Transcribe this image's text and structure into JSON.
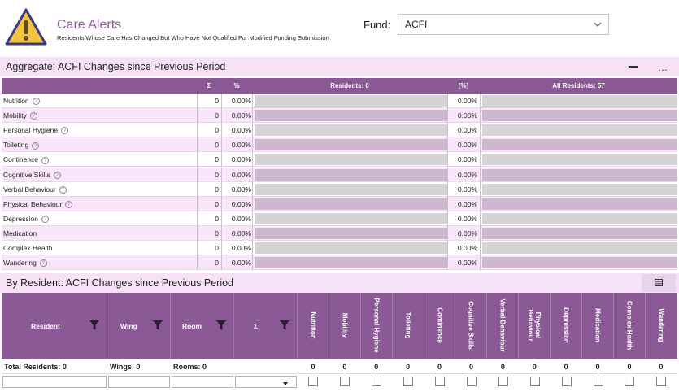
{
  "header": {
    "title": "Care Alerts",
    "subtitle": "Residents Whose Care Has Changed But Who Have Not Qualified For Modified Funding Submission",
    "fund_label": "Fund:",
    "fund_value": "ACFI"
  },
  "aggregate": {
    "title": "Aggregate: ACFI Changes since Previous Period",
    "more_label": "…",
    "columns": {
      "sigma": "Σ",
      "percent": "%",
      "residents": "Residents: 0",
      "pct_bracket": "[%]",
      "all_residents": "All Residents: 57"
    },
    "rows": [
      {
        "label": "Nutrition",
        "help": true,
        "count": "0",
        "pct": "0.00%",
        "pct2": "0.00%"
      },
      {
        "label": "Mobility",
        "help": true,
        "count": "0",
        "pct": "0.00%",
        "pct2": "0.00%"
      },
      {
        "label": "Personal Hygiene",
        "help": true,
        "count": "0",
        "pct": "0.00%",
        "pct2": "0.00%"
      },
      {
        "label": "Toileting",
        "help": true,
        "count": "0",
        "pct": "0.00%",
        "pct2": "0.00%"
      },
      {
        "label": "Continence",
        "help": true,
        "count": "0",
        "pct": "0.00%",
        "pct2": "0.00%"
      },
      {
        "label": "Cognitive Skills",
        "help": true,
        "count": "0",
        "pct": "0.00%",
        "pct2": "0.00%"
      },
      {
        "label": "Verbal Behaviour",
        "help": true,
        "count": "0",
        "pct": "0.00%",
        "pct2": "0.00%"
      },
      {
        "label": "Physical Behaviour",
        "help": true,
        "count": "0",
        "pct": "0.00%",
        "pct2": "0.00%"
      },
      {
        "label": "Depression",
        "help": true,
        "count": "0",
        "pct": "0.00%",
        "pct2": "0.00%"
      },
      {
        "label": "Medication",
        "help": false,
        "count": "0",
        "pct": "0.00%",
        "pct2": "0.00%"
      },
      {
        "label": "Complex Health",
        "help": false,
        "count": "0",
        "pct": "0.00%",
        "pct2": "0.00%"
      },
      {
        "label": "Wandering",
        "help": true,
        "count": "0",
        "pct": "0.00%",
        "pct2": "0.00%"
      }
    ]
  },
  "by_resident": {
    "title": "By Resident: ACFI Changes since Previous Period",
    "columns": {
      "resident": "Resident",
      "wing": "Wing",
      "room": "Room",
      "sigma": "Σ"
    },
    "domain_columns": [
      "Nutrition",
      "Mobility",
      "Personal Hygiene",
      "Toileting",
      "Continence",
      "Cognitive Skills",
      "Verbal Behaviour",
      "Physical Behaviour",
      "Depression",
      "Medication",
      "Complex Health",
      "Wandering"
    ],
    "totals": {
      "residents": "Total Residents: 0",
      "wings": "Wings: 0",
      "rooms": "Rooms: 0",
      "domain_totals": [
        "0",
        "0",
        "0",
        "0",
        "0",
        "0",
        "0",
        "0",
        "0",
        "0",
        "0",
        "0"
      ]
    }
  },
  "colors": {
    "accent": "#8b5a96",
    "section_bg": "#f6e1f7",
    "row_alt": "#f9e6fa"
  }
}
